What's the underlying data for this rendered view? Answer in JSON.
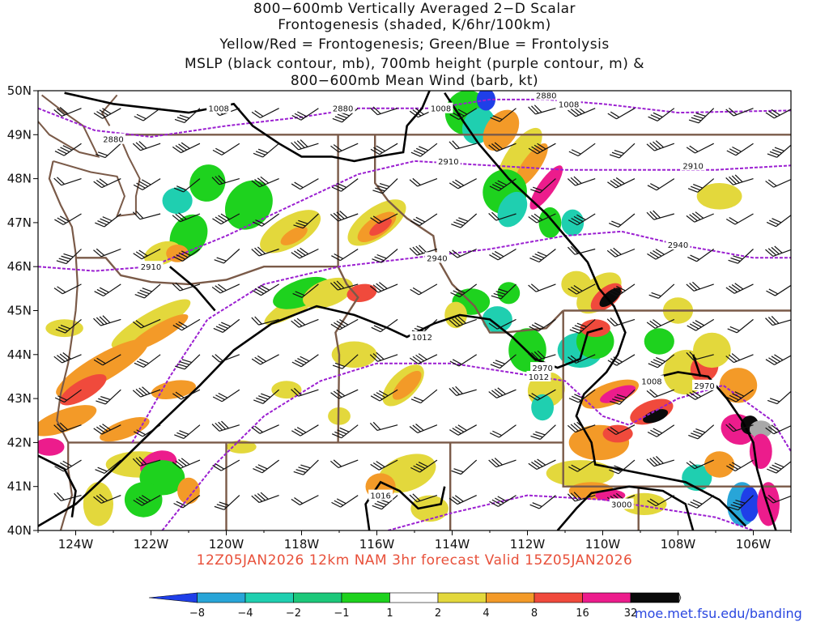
{
  "title": {
    "line1": "800−600mb Vertically Averaged 2−D Scalar",
    "line2": "Frontogenesis (shaded, K/6hr/100km)",
    "line3": "Yellow/Red = Frontogenesis;  Green/Blue = Frontolysis",
    "line4": "MSLP (black contour, mb), 700mb height (purple contour, m) &",
    "line5": "800−600mb Mean Wind (barb, kt)"
  },
  "map": {
    "lon_range": [
      -125,
      -105
    ],
    "lat_range": [
      40,
      50
    ],
    "lat_labels": [
      "50N",
      "49N",
      "48N",
      "47N",
      "46N",
      "45N",
      "44N",
      "43N",
      "42N",
      "41N",
      "40N"
    ],
    "lon_labels": [
      "124W",
      "122W",
      "120W",
      "118W",
      "116W",
      "114W",
      "112W",
      "110W",
      "108W",
      "106W"
    ],
    "colors": {
      "state_border": "#7a5a48",
      "mslp": "#000000",
      "height": "#9b1fd1",
      "barb": "#111111"
    },
    "mslp_labels": [
      {
        "text": "1008",
        "lon": -120.2,
        "lat": 49.6
      },
      {
        "text": "1008",
        "lon": -114.3,
        "lat": 49.6
      },
      {
        "text": "1008",
        "lon": -110.9,
        "lat": 49.7
      },
      {
        "text": "1012",
        "lon": -114.8,
        "lat": 44.4
      },
      {
        "text": "1012",
        "lon": -111.7,
        "lat": 43.5
      },
      {
        "text": "1008",
        "lon": -108.7,
        "lat": 43.4
      },
      {
        "text": "1016",
        "lon": -115.9,
        "lat": 40.8
      }
    ],
    "height_labels": [
      {
        "text": "2880",
        "lon": -123.0,
        "lat": 48.9
      },
      {
        "text": "2880",
        "lon": -116.9,
        "lat": 49.6
      },
      {
        "text": "2880",
        "lon": -111.5,
        "lat": 49.9
      },
      {
        "text": "2910",
        "lon": -122.0,
        "lat": 46.0
      },
      {
        "text": "2910",
        "lon": -114.1,
        "lat": 48.4
      },
      {
        "text": "2910",
        "lon": -107.6,
        "lat": 48.3
      },
      {
        "text": "2940",
        "lon": -114.4,
        "lat": 46.2
      },
      {
        "text": "2940",
        "lon": -108.0,
        "lat": 46.5
      },
      {
        "text": "2970",
        "lon": -111.6,
        "lat": 43.7
      },
      {
        "text": "2970",
        "lon": -107.3,
        "lat": 43.3
      },
      {
        "text": "3000",
        "lon": -109.5,
        "lat": 40.6
      }
    ]
  },
  "colorbar": {
    "labels": [
      "−8",
      "−4",
      "−2",
      "−1",
      "1",
      "2",
      "4",
      "8",
      "16",
      "32"
    ],
    "colors": [
      "#1f3fe8",
      "#28a5d8",
      "#1fcfb0",
      "#1cc87a",
      "#1ed21e",
      "#ffffff",
      "#e3d83c",
      "#f39a28",
      "#f04a3c",
      "#ec1c8c",
      "#0a0a0a",
      "#a8a8a8"
    ]
  },
  "footer": {
    "valid_text": "12Z05JAN2026  12km NAM 3hr forecast Valid 15Z05JAN2026",
    "url": "moe.met.fsu.edu/banding"
  }
}
